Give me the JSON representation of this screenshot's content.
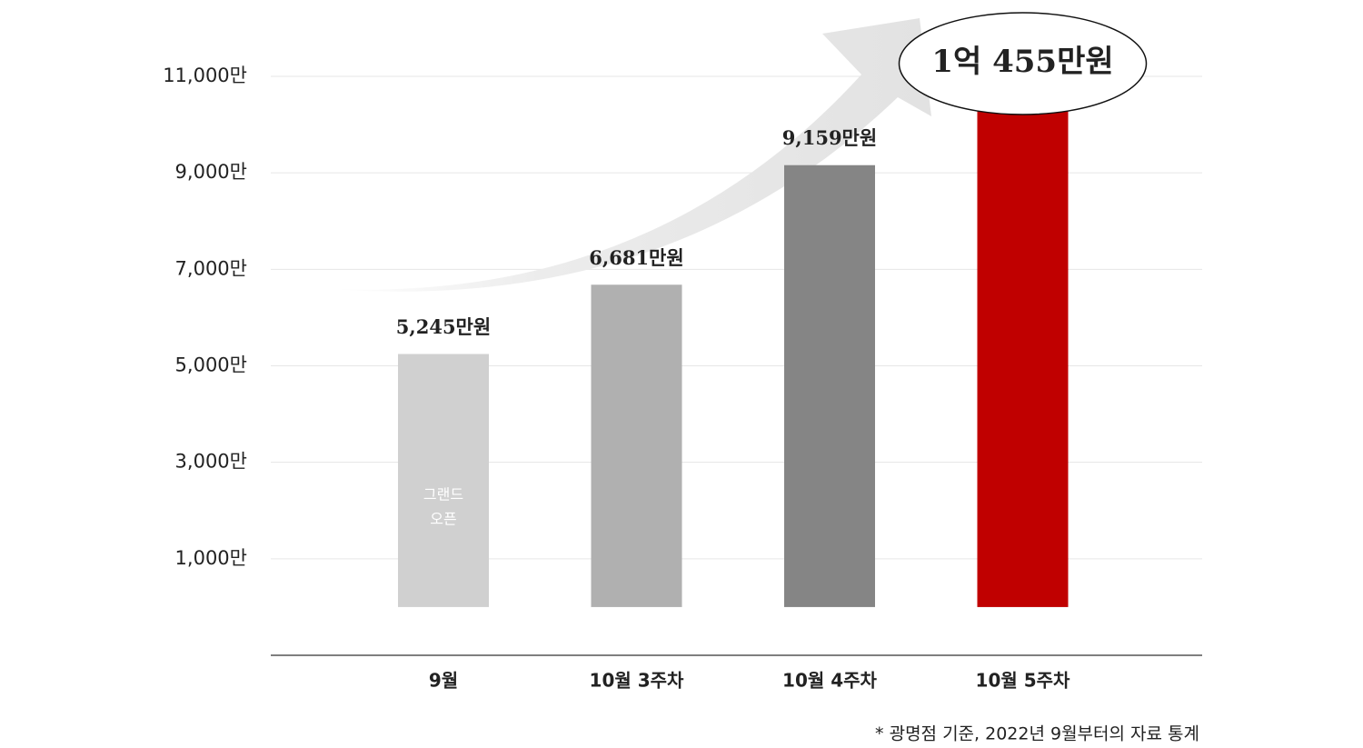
{
  "chart_data": {
    "type": "bar",
    "categories": [
      "9월",
      "10월 3주차",
      "10월 4주차",
      "10월 5주차"
    ],
    "values": [
      5245,
      6681,
      9159,
      10455
    ],
    "value_labels": [
      "5,245만원",
      "6,681만원",
      "9,159만원",
      "1억 455만원"
    ],
    "colors": [
      "#d0d0d0",
      "#b0b0b0",
      "#858585",
      "#c00000"
    ],
    "ylim": [
      -1000,
      11000
    ],
    "yticks": [
      {
        "value": 1000,
        "label": "1,000만"
      },
      {
        "value": 3000,
        "label": "3,000만"
      },
      {
        "value": 5000,
        "label": "5,000만"
      },
      {
        "value": 7000,
        "label": "7,000만"
      },
      {
        "value": 9000,
        "label": "9,000만"
      },
      {
        "value": 11000,
        "label": "11,000만"
      }
    ],
    "grid": true,
    "annotations": [
      "그랜드",
      "오픈"
    ],
    "footnote": "* 광명점 기준, 2022년 9월부터의 자료 통계"
  }
}
